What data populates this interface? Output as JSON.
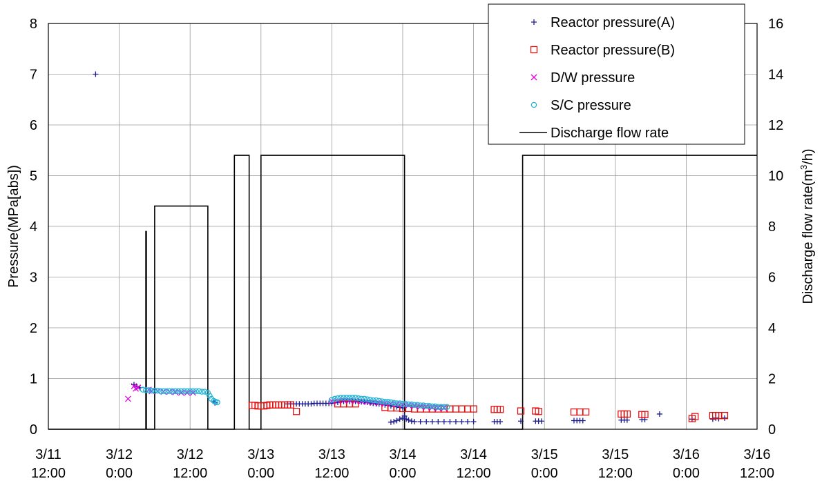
{
  "chart_data": {
    "type": "scatter",
    "x_axis": {
      "range_hours": [
        0,
        120
      ],
      "ticks": [
        {
          "h": 0,
          "line1": "3/11",
          "line2": "12:00"
        },
        {
          "h": 12,
          "line1": "3/12",
          "line2": "0:00"
        },
        {
          "h": 24,
          "line1": "3/12",
          "line2": "12:00"
        },
        {
          "h": 36,
          "line1": "3/13",
          "line2": "0:00"
        },
        {
          "h": 48,
          "line1": "3/13",
          "line2": "12:00"
        },
        {
          "h": 60,
          "line1": "3/14",
          "line2": "0:00"
        },
        {
          "h": 72,
          "line1": "3/14",
          "line2": "12:00"
        },
        {
          "h": 84,
          "line1": "3/15",
          "line2": "0:00"
        },
        {
          "h": 96,
          "line1": "3/15",
          "line2": "12:00"
        },
        {
          "h": 108,
          "line1": "3/16",
          "line2": "0:00"
        },
        {
          "h": 120,
          "line1": "3/16",
          "line2": "12:00"
        }
      ]
    },
    "y_left": {
      "label": "Pressure(MPa[abs])",
      "ylim": [
        0,
        8
      ],
      "ticks": [
        "0",
        "1",
        "2",
        "3",
        "4",
        "5",
        "6",
        "7",
        "8"
      ]
    },
    "y_right": {
      "label_prefix": "Discharge flow rate(m",
      "label_sup": "3",
      "label_suffix": "/h)",
      "ylim": [
        0,
        16
      ],
      "ticks": [
        "0",
        "2",
        "4",
        "6",
        "8",
        "10",
        "12",
        "14",
        "16"
      ]
    },
    "grid": true,
    "legend_position": "top-right",
    "series": [
      {
        "name": "Reactor pressure(A)",
        "marker": "plus",
        "color": "#1a1a8c",
        "points": [
          [
            8.0,
            7.0
          ],
          [
            14.5,
            0.88
          ],
          [
            15.0,
            0.84
          ],
          [
            15.5,
            0.82
          ],
          [
            28.0,
            0.55
          ],
          [
            28.2,
            0.52
          ],
          [
            40.5,
            0.5
          ],
          [
            41.0,
            0.5
          ],
          [
            41.5,
            0.5
          ],
          [
            42.0,
            0.5
          ],
          [
            42.5,
            0.5
          ],
          [
            43.0,
            0.5
          ],
          [
            43.5,
            0.5
          ],
          [
            44.0,
            0.5
          ],
          [
            44.5,
            0.5
          ],
          [
            45.0,
            0.51
          ],
          [
            45.5,
            0.51
          ],
          [
            46.0,
            0.51
          ],
          [
            46.5,
            0.51
          ],
          [
            47.0,
            0.51
          ],
          [
            47.5,
            0.51
          ],
          [
            48.0,
            0.51
          ],
          [
            48.5,
            0.52
          ],
          [
            49.0,
            0.53
          ],
          [
            49.5,
            0.54
          ],
          [
            50.0,
            0.55
          ],
          [
            50.5,
            0.55
          ],
          [
            51.0,
            0.55
          ],
          [
            51.5,
            0.55
          ],
          [
            52.0,
            0.55
          ],
          [
            52.5,
            0.55
          ],
          [
            53.0,
            0.54
          ],
          [
            53.5,
            0.54
          ],
          [
            54.0,
            0.53
          ],
          [
            54.5,
            0.52
          ],
          [
            55.0,
            0.51
          ],
          [
            55.5,
            0.5
          ],
          [
            56.0,
            0.5
          ],
          [
            56.5,
            0.49
          ],
          [
            57.0,
            0.48
          ],
          [
            57.5,
            0.47
          ],
          [
            58.0,
            0.46
          ],
          [
            58.5,
            0.45
          ],
          [
            59.0,
            0.44
          ],
          [
            59.5,
            0.43
          ],
          [
            60.0,
            0.42
          ],
          [
            58.0,
            0.14
          ],
          [
            58.5,
            0.15
          ],
          [
            59.0,
            0.17
          ],
          [
            59.5,
            0.2
          ],
          [
            60.0,
            0.22
          ],
          [
            60.3,
            0.26
          ],
          [
            60.6,
            0.2
          ],
          [
            61.0,
            0.18
          ],
          [
            61.5,
            0.16
          ],
          [
            62.0,
            0.15
          ],
          [
            63.0,
            0.15
          ],
          [
            64.0,
            0.15
          ],
          [
            65.0,
            0.15
          ],
          [
            66.0,
            0.15
          ],
          [
            67.0,
            0.15
          ],
          [
            68.0,
            0.15
          ],
          [
            69.0,
            0.15
          ],
          [
            70.0,
            0.15
          ],
          [
            71.0,
            0.15
          ],
          [
            72.0,
            0.15
          ],
          [
            75.5,
            0.15
          ],
          [
            76.0,
            0.15
          ],
          [
            76.5,
            0.15
          ],
          [
            80.0,
            0.16
          ],
          [
            82.5,
            0.16
          ],
          [
            83.0,
            0.16
          ],
          [
            83.5,
            0.16
          ],
          [
            89.0,
            0.17
          ],
          [
            89.5,
            0.17
          ],
          [
            90.0,
            0.17
          ],
          [
            90.5,
            0.17
          ],
          [
            97.0,
            0.18
          ],
          [
            97.5,
            0.18
          ],
          [
            98.0,
            0.18
          ],
          [
            100.5,
            0.19
          ],
          [
            101.0,
            0.19
          ],
          [
            103.5,
            0.3
          ],
          [
            109.0,
            0.2
          ],
          [
            112.5,
            0.2
          ],
          [
            113.0,
            0.22
          ],
          [
            113.5,
            0.21
          ],
          [
            114.5,
            0.22
          ]
        ]
      },
      {
        "name": "Reactor pressure(B)",
        "marker": "square",
        "color": "#e01010",
        "points": [
          [
            34.5,
            0.47
          ],
          [
            35.0,
            0.47
          ],
          [
            35.5,
            0.46
          ],
          [
            36.0,
            0.46
          ],
          [
            36.5,
            0.46
          ],
          [
            37.0,
            0.47
          ],
          [
            37.5,
            0.48
          ],
          [
            38.0,
            0.48
          ],
          [
            38.5,
            0.48
          ],
          [
            39.0,
            0.48
          ],
          [
            39.5,
            0.48
          ],
          [
            40.0,
            0.48
          ],
          [
            40.5,
            0.48
          ],
          [
            41.0,
            0.48
          ],
          [
            42.0,
            0.35
          ],
          [
            49.0,
            0.5
          ],
          [
            50.0,
            0.5
          ],
          [
            51.0,
            0.5
          ],
          [
            52.0,
            0.5
          ],
          [
            57.0,
            0.43
          ],
          [
            58.0,
            0.42
          ],
          [
            59.0,
            0.42
          ],
          [
            60.0,
            0.41
          ],
          [
            61.0,
            0.41
          ],
          [
            62.0,
            0.4
          ],
          [
            63.0,
            0.4
          ],
          [
            64.0,
            0.4
          ],
          [
            65.0,
            0.4
          ],
          [
            66.0,
            0.4
          ],
          [
            67.0,
            0.4
          ],
          [
            68.0,
            0.4
          ],
          [
            69.0,
            0.4
          ],
          [
            70.0,
            0.4
          ],
          [
            71.0,
            0.4
          ],
          [
            72.0,
            0.4
          ],
          [
            75.5,
            0.39
          ],
          [
            76.0,
            0.39
          ],
          [
            76.5,
            0.39
          ],
          [
            80.0,
            0.36
          ],
          [
            82.5,
            0.36
          ],
          [
            83.0,
            0.35
          ],
          [
            89.0,
            0.34
          ],
          [
            90.0,
            0.34
          ],
          [
            91.0,
            0.34
          ],
          [
            97.0,
            0.3
          ],
          [
            97.5,
            0.3
          ],
          [
            98.0,
            0.3
          ],
          [
            100.5,
            0.29
          ],
          [
            101.0,
            0.29
          ],
          [
            109.0,
            0.21
          ],
          [
            109.5,
            0.25
          ],
          [
            112.5,
            0.27
          ],
          [
            113.0,
            0.27
          ],
          [
            113.5,
            0.27
          ],
          [
            114.5,
            0.27
          ]
        ]
      },
      {
        "name": "D/W pressure",
        "marker": "x",
        "color": "#e000e0",
        "points": [
          [
            13.5,
            0.6
          ],
          [
            14.5,
            0.85
          ],
          [
            14.8,
            0.8
          ],
          [
            15.2,
            0.82
          ],
          [
            17.0,
            0.78
          ],
          [
            17.5,
            0.75
          ],
          [
            18.5,
            0.75
          ],
          [
            19.5,
            0.74
          ],
          [
            20.5,
            0.74
          ],
          [
            21.5,
            0.73
          ],
          [
            22.5,
            0.72
          ],
          [
            23.5,
            0.72
          ],
          [
            24.5,
            0.72
          ],
          [
            48.0,
            0.55
          ],
          [
            49.0,
            0.56
          ],
          [
            50.0,
            0.57
          ],
          [
            51.0,
            0.57
          ],
          [
            52.0,
            0.56
          ],
          [
            53.0,
            0.55
          ],
          [
            54.0,
            0.54
          ],
          [
            55.0,
            0.53
          ],
          [
            56.0,
            0.52
          ],
          [
            57.0,
            0.51
          ],
          [
            58.0,
            0.5
          ],
          [
            59.0,
            0.49
          ],
          [
            60.0,
            0.48
          ],
          [
            61.0,
            0.47
          ],
          [
            62.0,
            0.46
          ],
          [
            63.0,
            0.45
          ],
          [
            64.0,
            0.44
          ],
          [
            65.0,
            0.43
          ],
          [
            66.0,
            0.42
          ],
          [
            67.0,
            0.42
          ]
        ]
      },
      {
        "name": "S/C pressure",
        "marker": "circle",
        "color": "#22b5d6",
        "points": [
          [
            16.0,
            0.78
          ],
          [
            16.5,
            0.77
          ],
          [
            17.0,
            0.77
          ],
          [
            17.5,
            0.76
          ],
          [
            18.0,
            0.76
          ],
          [
            18.5,
            0.76
          ],
          [
            19.0,
            0.75
          ],
          [
            19.5,
            0.75
          ],
          [
            20.0,
            0.75
          ],
          [
            20.5,
            0.75
          ],
          [
            21.0,
            0.75
          ],
          [
            21.5,
            0.75
          ],
          [
            22.0,
            0.75
          ],
          [
            22.5,
            0.75
          ],
          [
            23.0,
            0.75
          ],
          [
            23.5,
            0.75
          ],
          [
            24.0,
            0.75
          ],
          [
            24.5,
            0.75
          ],
          [
            25.0,
            0.75
          ],
          [
            25.5,
            0.75
          ],
          [
            26.0,
            0.74
          ],
          [
            26.5,
            0.74
          ],
          [
            27.0,
            0.72
          ],
          [
            27.3,
            0.66
          ],
          [
            27.6,
            0.6
          ],
          [
            28.0,
            0.56
          ],
          [
            28.3,
            0.54
          ],
          [
            28.6,
            0.53
          ],
          [
            48.0,
            0.58
          ],
          [
            48.5,
            0.6
          ],
          [
            49.0,
            0.61
          ],
          [
            49.5,
            0.62
          ],
          [
            50.0,
            0.62
          ],
          [
            50.5,
            0.62
          ],
          [
            51.0,
            0.62
          ],
          [
            51.5,
            0.62
          ],
          [
            52.0,
            0.62
          ],
          [
            52.5,
            0.61
          ],
          [
            53.0,
            0.6
          ],
          [
            53.5,
            0.6
          ],
          [
            54.0,
            0.59
          ],
          [
            54.5,
            0.58
          ],
          [
            55.0,
            0.57
          ],
          [
            55.5,
            0.57
          ],
          [
            56.0,
            0.56
          ],
          [
            56.5,
            0.55
          ],
          [
            57.0,
            0.54
          ],
          [
            57.5,
            0.54
          ],
          [
            58.0,
            0.53
          ],
          [
            58.5,
            0.52
          ],
          [
            59.0,
            0.51
          ],
          [
            59.5,
            0.51
          ],
          [
            60.0,
            0.5
          ],
          [
            60.5,
            0.5
          ],
          [
            61.0,
            0.49
          ],
          [
            61.5,
            0.49
          ],
          [
            62.0,
            0.48
          ],
          [
            62.5,
            0.48
          ],
          [
            63.0,
            0.47
          ],
          [
            63.5,
            0.47
          ],
          [
            64.0,
            0.46
          ],
          [
            64.5,
            0.46
          ],
          [
            65.0,
            0.45
          ],
          [
            65.5,
            0.45
          ],
          [
            66.0,
            0.44
          ],
          [
            66.5,
            0.44
          ],
          [
            67.0,
            0.44
          ],
          [
            67.5,
            0.44
          ]
        ]
      },
      {
        "name": "Discharge flow rate",
        "marker": "line",
        "color": "#000000",
        "axis": "right",
        "points": [
          [
            0,
            0
          ],
          [
            16.5,
            0
          ],
          [
            16.5,
            7.8
          ],
          [
            16.6,
            7.8
          ],
          [
            16.6,
            0
          ],
          [
            18.0,
            0
          ],
          [
            18.0,
            8.8
          ],
          [
            27.0,
            8.8
          ],
          [
            27.0,
            0
          ],
          [
            31.5,
            0
          ],
          [
            31.5,
            10.8
          ],
          [
            34.0,
            10.8
          ],
          [
            34.0,
            0
          ],
          [
            36.0,
            0
          ],
          [
            36.0,
            10.8
          ],
          [
            60.3,
            10.8
          ],
          [
            60.3,
            0
          ],
          [
            80.3,
            0
          ],
          [
            80.3,
            10.8
          ],
          [
            120,
            10.8
          ]
        ]
      }
    ]
  }
}
